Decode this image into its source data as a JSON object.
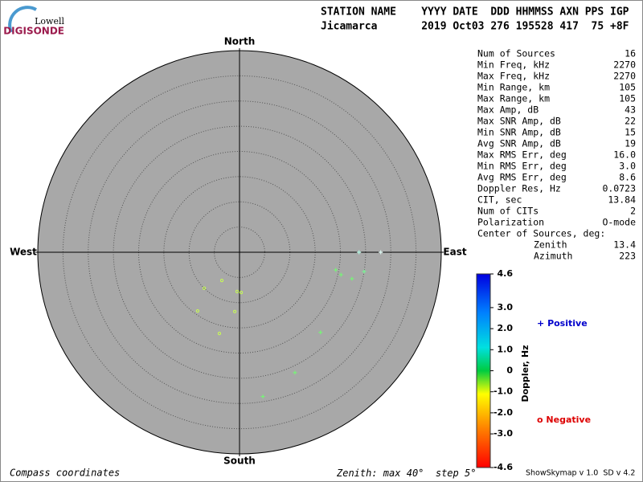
{
  "logo": {
    "top": "Lowell",
    "bottom": "DIGISONDE"
  },
  "header": {
    "row1": "STATION NAME    YYYY DATE  DDD HHMMSS AXN PPS IGP",
    "row2": "Jicamarca       2019 Oct03 276 195528 417  75 +8F"
  },
  "compass": {
    "north": "North",
    "south": "South",
    "east": "East",
    "west": "West"
  },
  "zenith_scale": {
    "prefix": "Zenith: max",
    "max": {
      "value": 40,
      "label": "40°"
    },
    "step_prefix": "step",
    "step": {
      "value": 5,
      "label": "5°"
    }
  },
  "stats": [
    [
      "Num of Sources",
      "16"
    ],
    [
      "Min Freq, kHz",
      "2270"
    ],
    [
      "Max Freq, kHz",
      "2270"
    ],
    [
      "Min Range, km",
      "105"
    ],
    [
      "Max Range, km",
      "105"
    ],
    [
      "Max Amp, dB",
      "43"
    ],
    [
      "Max SNR Amp, dB",
      "22"
    ],
    [
      "Min SNR Amp, dB",
      "15"
    ],
    [
      "Avg SNR Amp, dB",
      "19"
    ],
    [
      "Max RMS Err, deg",
      "16.0"
    ],
    [
      "Min RMS Err, deg",
      "3.0"
    ],
    [
      "Avg RMS Err, deg",
      "8.6"
    ],
    [
      "Doppler Res, Hz",
      "0.0723"
    ],
    [
      "CIT, sec",
      "13.84"
    ],
    [
      "Num of CITs",
      "2"
    ],
    [
      "Polarization",
      "O-mode"
    ],
    [
      "Center of Sources, deg:",
      ""
    ]
  ],
  "center": [
    [
      "Zenith",
      "13.4"
    ],
    [
      "Azimuth",
      "223"
    ]
  ],
  "colorbar": {
    "title": "Doppler, Hz",
    "lim": [
      -4.6,
      4.6
    ],
    "ticks": [
      4.6,
      {
        "value": 3,
        "label": "3.0"
      },
      {
        "value": 2,
        "label": "2.0"
      },
      {
        "value": 1,
        "label": "1.0"
      },
      0,
      {
        "value": -1,
        "label": "-1.0"
      },
      {
        "value": -2,
        "label": "-2.0"
      },
      {
        "value": -3,
        "label": "-3.0"
      },
      -4.6
    ]
  },
  "legend": {
    "positive": {
      "symbol": "+",
      "label": "Positive",
      "color": "#0000cc"
    },
    "negative": {
      "symbol": "o",
      "label": "Negative",
      "color": "#dd0000"
    }
  },
  "points": [
    {
      "zenith": 23.7,
      "azimuth": 90,
      "sign": "positive",
      "color": "#b0ffe8"
    },
    {
      "zenith": 28.0,
      "azimuth": 90,
      "sign": "positive",
      "color": "#e0fff8"
    },
    {
      "zenith": 19.4,
      "azimuth": 100.4,
      "sign": "positive",
      "color": "#70ff70"
    },
    {
      "zenith": 20.6,
      "azimuth": 102.5,
      "sign": "positive",
      "color": "#70ff70"
    },
    {
      "zenith": 22.9,
      "azimuth": 103.3,
      "sign": "positive",
      "color": "#70ff70"
    },
    {
      "zenith": 25.0,
      "azimuth": 98.8,
      "sign": "positive",
      "color": "#70ff90"
    },
    {
      "zenith": 6.6,
      "azimuth": 212.1,
      "sign": "negative",
      "color": "#c8ff50"
    },
    {
      "zenith": 10.0,
      "azimuth": 224.4,
      "sign": "negative",
      "color": "#c8ff50"
    },
    {
      "zenith": 7.8,
      "azimuth": 183.5,
      "sign": "negative",
      "color": "#c8ff50"
    },
    {
      "zenith": 8.0,
      "azimuth": 177.7,
      "sign": "negative",
      "color": "#c8ff50"
    },
    {
      "zenith": 14.3,
      "azimuth": 215.5,
      "sign": "negative",
      "color": "#c8ff50"
    },
    {
      "zenith": 11.8,
      "azimuth": 184.6,
      "sign": "negative",
      "color": "#c8ff50"
    },
    {
      "zenith": 16.6,
      "azimuth": 193.9,
      "sign": "negative",
      "color": "#c8ff50"
    },
    {
      "zenith": 22.6,
      "azimuth": 134.7,
      "sign": "positive",
      "color": "#70ff70"
    },
    {
      "zenith": 26.3,
      "azimuth": 155.3,
      "sign": "positive",
      "color": "#70ff70"
    },
    {
      "zenith": 29.0,
      "azimuth": 170.8,
      "sign": "positive",
      "color": "#70ff70"
    }
  ],
  "footer": {
    "left": "Compass coordinates",
    "right": "ShowSkymap v 1.0  SD v 4.2"
  }
}
